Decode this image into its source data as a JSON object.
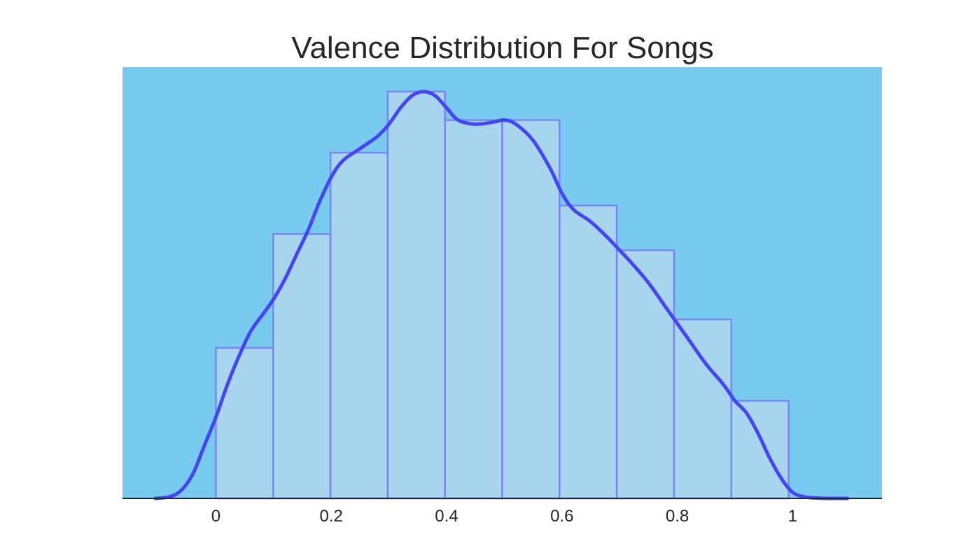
{
  "chart_data": {
    "type": "bar",
    "title": "Valence Distribution For Songs",
    "xlabel": "",
    "ylabel": "",
    "xlim": [
      -0.162,
      1.155
    ],
    "ylim": [
      0,
      1.06
    ],
    "x_ticks": [
      {
        "value": 0,
        "label": "0"
      },
      {
        "value": 0.2,
        "label": "0.2"
      },
      {
        "value": 0.4,
        "label": "0.4"
      },
      {
        "value": 0.6,
        "label": "0.6"
      },
      {
        "value": 0.8,
        "label": "0.8"
      },
      {
        "value": 1,
        "label": "1"
      }
    ],
    "y_ticks_visible": false,
    "grid": false,
    "series": [
      {
        "kind": "histogram",
        "bin_edges": [
          0,
          0.0993,
          0.1986,
          0.2979,
          0.3972,
          0.4965,
          0.5958,
          0.6951,
          0.7944,
          0.8937,
          0.993
        ],
        "values": [
          0.37,
          0.65,
          0.85,
          1.0,
          0.93,
          0.93,
          0.72,
          0.61,
          0.44,
          0.24
        ]
      },
      {
        "kind": "kde",
        "x": [
          -0.105,
          -0.08,
          -0.06,
          -0.04,
          -0.02,
          0.0,
          0.02,
          0.04,
          0.06,
          0.08,
          0.1,
          0.12,
          0.14,
          0.16,
          0.18,
          0.2,
          0.22,
          0.25,
          0.28,
          0.3,
          0.32,
          0.34,
          0.36,
          0.38,
          0.4,
          0.42,
          0.45,
          0.48,
          0.5,
          0.52,
          0.55,
          0.58,
          0.6,
          0.62,
          0.65,
          0.68,
          0.7,
          0.72,
          0.75,
          0.78,
          0.8,
          0.82,
          0.85,
          0.88,
          0.9,
          0.92,
          0.94,
          0.96,
          0.98,
          1.0,
          1.02,
          1.04,
          1.06,
          1.08,
          1.095
        ],
        "y": [
          0.0,
          0.004,
          0.02,
          0.06,
          0.13,
          0.2,
          0.28,
          0.35,
          0.41,
          0.45,
          0.49,
          0.54,
          0.6,
          0.66,
          0.73,
          0.79,
          0.83,
          0.86,
          0.89,
          0.92,
          0.96,
          0.99,
          1.0,
          0.99,
          0.96,
          0.93,
          0.92,
          0.925,
          0.93,
          0.92,
          0.88,
          0.81,
          0.75,
          0.71,
          0.68,
          0.64,
          0.61,
          0.58,
          0.53,
          0.47,
          0.43,
          0.39,
          0.33,
          0.28,
          0.24,
          0.21,
          0.16,
          0.1,
          0.05,
          0.015,
          0.004,
          0.001,
          0.0,
          0.0,
          0.0
        ]
      }
    ],
    "colors": {
      "plot_background": "#79caef",
      "bar_fill": "#a6d5ed",
      "bar_edge": "#7a86f5",
      "kde_line": "#4545f5",
      "axis_line": "#262626"
    }
  }
}
